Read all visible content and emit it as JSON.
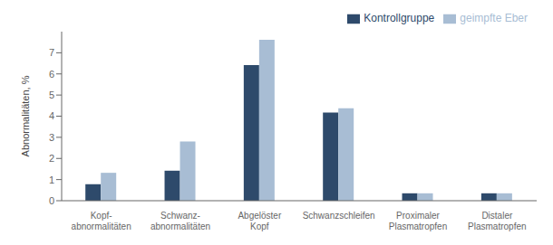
{
  "chart_data": {
    "type": "bar",
    "categories": [
      "Kopf-\nabnormalitäten",
      "Schwanz-\nabnormalitäten",
      "Abgelöster\nKopf",
      "Schwanzschleifen",
      "Proximaler\nPlasmatropfen",
      "Distaler\nPlasmatropfen"
    ],
    "series": [
      {
        "name": "Kontrollgruppe",
        "color": "#2E4A6B",
        "values": [
          0.78,
          1.42,
          6.42,
          4.17,
          0.35,
          0.35
        ]
      },
      {
        "name": "geimpfte Eber",
        "color": "#A8BDD4",
        "values": [
          1.32,
          2.8,
          7.62,
          4.37,
          0.35,
          0.35
        ]
      }
    ],
    "ylabel": "Abnormalitäten, %",
    "ylim": [
      0,
      8.0
    ],
    "yticks": [
      0,
      1,
      2,
      3,
      4,
      5,
      6,
      7
    ],
    "grid": false,
    "legend": "upper right"
  }
}
